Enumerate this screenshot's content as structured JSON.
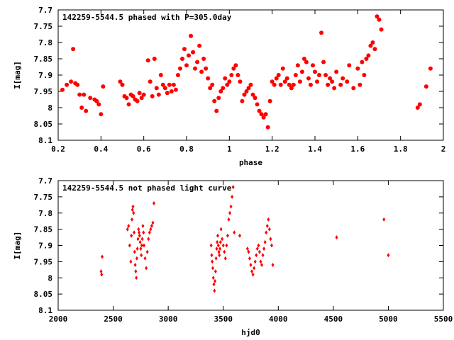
{
  "chart_data": [
    {
      "type": "scatter",
      "title": "142259-5544.5 phased with P=305.0day",
      "xlabel": "phase",
      "ylabel": "I[mag]",
      "xlim": [
        0.2,
        2.0
      ],
      "ylim": [
        8.1,
        7.7
      ],
      "y_inverted": true,
      "x_ticks": [
        "0.2",
        "0.4",
        "0.6",
        "0.8",
        "1",
        "1.2",
        "1.4",
        "1.6",
        "1.8",
        "2"
      ],
      "y_ticks": [
        "7.7",
        "7.75",
        "7.8",
        "7.85",
        "7.9",
        "7.95",
        "8",
        "8.05",
        "8.1"
      ],
      "marker": "filled-circle",
      "color": "#ff0000",
      "grid": false,
      "legend": "none",
      "series": [
        {
          "x": [
            0.22,
            0.24,
            0.26,
            0.28,
            0.29,
            0.3,
            0.31,
            0.32,
            0.33,
            0.35,
            0.37,
            0.38,
            0.39,
            0.4,
            0.41,
            0.27,
            0.49,
            0.5,
            0.51,
            0.52,
            0.53,
            0.54,
            0.55,
            0.56,
            0.57,
            0.58,
            0.59,
            0.6,
            0.62,
            0.63,
            0.64,
            0.65,
            0.66,
            0.67,
            0.68,
            0.69,
            0.7,
            0.71,
            0.72,
            0.73,
            0.74,
            0.75,
            0.76,
            0.77,
            0.78,
            0.79,
            0.8,
            0.81,
            0.82,
            0.83,
            0.84,
            0.85,
            0.86,
            0.87,
            0.88,
            0.89,
            0.9,
            0.91,
            0.92,
            0.93,
            0.94,
            0.95,
            0.96,
            0.97,
            0.98,
            0.99,
            1.0,
            1.01,
            1.02,
            1.03,
            1.04,
            1.05,
            1.06,
            1.07,
            1.08,
            1.09,
            1.1,
            1.11,
            1.12,
            1.13,
            1.14,
            1.15,
            1.16,
            1.17,
            1.18,
            1.19,
            1.2,
            1.21,
            1.22,
            1.23,
            1.24,
            1.25,
            1.26,
            1.27,
            1.28,
            1.29,
            1.3,
            1.31,
            1.32,
            1.33,
            1.34,
            1.35,
            1.36,
            1.37,
            1.38,
            1.39,
            1.4,
            1.41,
            1.42,
            1.43,
            1.44,
            1.45,
            1.46,
            1.47,
            1.48,
            1.49,
            1.5,
            1.52,
            1.53,
            1.55,
            1.56,
            1.58,
            1.6,
            1.61,
            1.62,
            1.63,
            1.64,
            1.65,
            1.66,
            1.67,
            1.68,
            1.69,
            1.7,
            1.71,
            1.88,
            1.89,
            1.92,
            1.94
          ],
          "y": [
            7.945,
            7.93,
            7.92,
            7.925,
            7.93,
            7.96,
            8.0,
            7.96,
            8.01,
            7.97,
            7.975,
            7.98,
            7.99,
            8.02,
            7.935,
            7.82,
            7.92,
            7.93,
            7.965,
            7.97,
            7.99,
            7.96,
            7.965,
            7.975,
            7.98,
            7.955,
            7.97,
            7.96,
            7.855,
            7.92,
            7.965,
            7.85,
            7.94,
            7.96,
            7.9,
            7.93,
            7.94,
            7.955,
            7.93,
            7.95,
            7.93,
            7.945,
            7.9,
            7.88,
            7.85,
            7.82,
            7.87,
            7.84,
            7.78,
            7.83,
            7.88,
            7.86,
            7.81,
            7.89,
            7.85,
            7.88,
            7.91,
            7.94,
            7.93,
            7.98,
            8.01,
            7.97,
            7.95,
            7.94,
            7.91,
            7.93,
            7.92,
            7.9,
            7.88,
            7.87,
            7.9,
            7.92,
            7.98,
            7.96,
            7.95,
            7.94,
            7.93,
            7.96,
            7.97,
            7.99,
            8.01,
            8.02,
            8.03,
            8.02,
            8.06,
            7.98,
            7.92,
            7.93,
            7.91,
            7.9,
            7.93,
            7.88,
            7.92,
            7.91,
            7.93,
            7.94,
            7.93,
            7.9,
            7.87,
            7.92,
            7.89,
            7.85,
            7.86,
            7.91,
            7.93,
            7.87,
            7.89,
            7.92,
            7.9,
            7.77,
            7.86,
            7.9,
            7.93,
            7.91,
            7.92,
            7.94,
            7.89,
            7.93,
            7.91,
            7.92,
            7.87,
            7.94,
            7.88,
            7.93,
            7.86,
            7.9,
            7.85,
            7.84,
            7.81,
            7.8,
            7.82,
            7.72,
            7.73,
            7.76,
            8.0,
            7.99,
            7.935,
            7.88
          ],
          "name": ""
        }
      ]
    },
    {
      "type": "scatter",
      "title": "142259-5544.5 not phased light curve",
      "xlabel": "hjd0",
      "ylabel": "I[mag]",
      "xlim": [
        2000,
        5500
      ],
      "ylim": [
        8.1,
        7.7
      ],
      "y_inverted": true,
      "x_ticks": [
        "2000",
        "2500",
        "3000",
        "3500",
        "4000",
        "4500",
        "5000",
        "5500"
      ],
      "y_ticks": [
        "7.7",
        "7.75",
        "7.8",
        "7.85",
        "7.9",
        "7.95",
        "8",
        "8.05",
        "8.1"
      ],
      "marker": "filled-diamond",
      "color": "#ff0000",
      "grid": false,
      "legend": "none",
      "series": [
        {
          "x": [
            2390,
            2395,
            2400,
            2630,
            2640,
            2650,
            2660,
            2665,
            2670,
            2675,
            2680,
            2685,
            2690,
            2695,
            2700,
            2705,
            2710,
            2715,
            2720,
            2725,
            2730,
            2735,
            2740,
            2745,
            2750,
            2755,
            2760,
            2765,
            2770,
            2775,
            2780,
            2790,
            2800,
            2810,
            2820,
            2830,
            2840,
            2850,
            2860,
            2870,
            3390,
            3395,
            3400,
            3405,
            3410,
            3415,
            3420,
            3425,
            3430,
            3435,
            3440,
            3445,
            3450,
            3455,
            3460,
            3465,
            3470,
            3475,
            3480,
            3490,
            3500,
            3510,
            3520,
            3530,
            3540,
            3550,
            3560,
            3570,
            3580,
            3590,
            3600,
            3650,
            3720,
            3730,
            3740,
            3750,
            3760,
            3770,
            3780,
            3790,
            3800,
            3810,
            3820,
            3830,
            3840,
            3850,
            3860,
            3870,
            3880,
            3890,
            3900,
            3910,
            3920,
            3930,
            3940,
            3950,
            4530,
            4960,
            5000
          ],
          "y": [
            7.98,
            7.99,
            7.935,
            7.85,
            7.84,
            7.9,
            7.95,
            7.87,
            7.82,
            7.79,
            7.78,
            7.8,
            7.86,
            7.92,
            7.96,
            7.98,
            8.0,
            7.94,
            7.91,
            7.88,
            7.85,
            7.86,
            7.87,
            7.89,
            7.91,
            7.93,
            7.9,
            7.88,
            7.84,
            7.86,
            7.9,
            7.94,
            7.97,
            7.92,
            7.88,
            7.86,
            7.85,
            7.84,
            7.83,
            7.77,
            7.9,
            7.93,
            7.95,
            7.97,
            8.0,
            8.02,
            8.04,
            8.01,
            7.98,
            7.94,
            7.91,
            7.89,
            7.87,
            7.9,
            7.92,
            7.93,
            7.91,
            7.89,
            7.85,
            7.88,
            7.9,
            7.92,
            7.94,
            7.9,
            7.87,
            7.82,
            7.8,
            7.78,
            7.75,
            7.72,
            7.86,
            7.87,
            7.91,
            7.92,
            7.94,
            7.96,
            7.98,
            7.99,
            7.97,
            7.95,
            7.93,
            7.91,
            7.9,
            7.92,
            7.95,
            7.96,
            7.93,
            7.91,
            7.89,
            7.86,
            7.84,
            7.82,
            7.85,
            7.88,
            7.9,
            7.96,
            7.875,
            7.82,
            7.93
          ],
          "name": ""
        }
      ]
    }
  ]
}
